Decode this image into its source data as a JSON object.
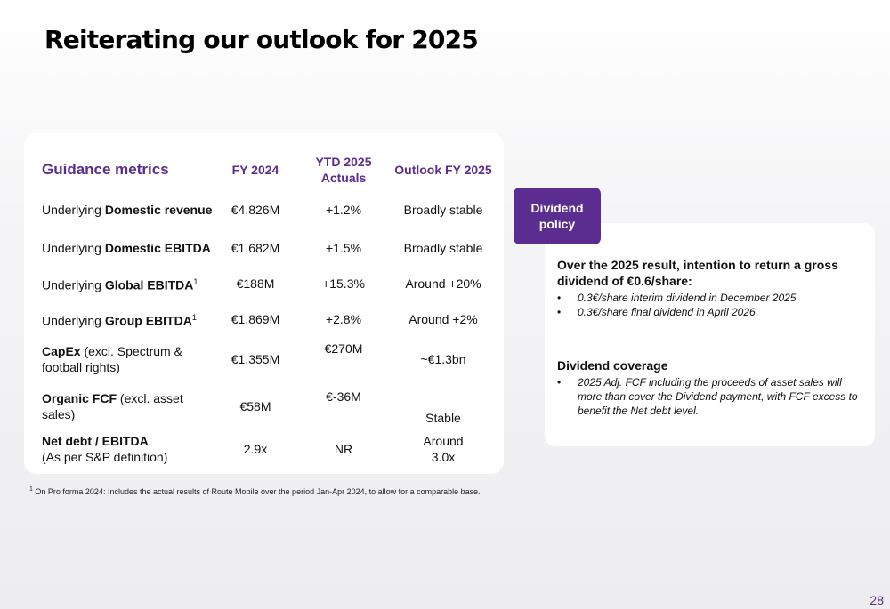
{
  "title": "Reiterating our outlook for 2025",
  "table": {
    "headers": [
      "Guidance metrics",
      "FY 2024",
      "YTD 2025 Actuals",
      "Outlook FY 2025"
    ],
    "rows": [
      {
        "prefix": "Underlying ",
        "bold": "Domestic revenue",
        "suffix": "",
        "sup": "",
        "fy2024": "€4,826M",
        "ytd2025": "+1.2%",
        "outlook": "Broadly stable"
      },
      {
        "prefix": "Underlying ",
        "bold": "Domestic EBITDA",
        "suffix": "",
        "sup": "",
        "fy2024": "€1,682M",
        "ytd2025": "+1.5%",
        "outlook": "Broadly stable"
      },
      {
        "prefix": "Underlying ",
        "bold": "Global EBITDA",
        "suffix": "",
        "sup": "1",
        "fy2024": "€188M",
        "ytd2025": "+15.3%",
        "outlook": "Around +20%"
      },
      {
        "prefix": "Underlying ",
        "bold": "Group EBITDA",
        "suffix": "",
        "sup": "1",
        "fy2024": "€1,869M",
        "ytd2025": "+2.8%",
        "outlook": "Around +2%"
      },
      {
        "prefix": "",
        "bold": "CapEx",
        "suffix": " (excl. Spectrum & football rights)",
        "sup": "",
        "fy2024": "€1,355M",
        "ytd2025": "€270M",
        "outlook": "~€1.3bn"
      },
      {
        "prefix": "",
        "bold": "Organic FCF",
        "suffix": " (excl. asset sales)",
        "sup": "",
        "fy2024": "€58M",
        "ytd2025": "€-36M",
        "outlook": "Stable"
      },
      {
        "prefix": "",
        "bold": "Net debt / EBITDA",
        "suffix": "(As per S&P definition)",
        "sup": "",
        "fy2024": "2.9x",
        "ytd2025": "NR",
        "outlook": "Around 3.0x"
      }
    ]
  },
  "footnote": {
    "marker": "1",
    "text": " On Pro forma 2024: Includes the actual results of Route Mobile over the period Jan-Apr  2024, to allow for a comparable base."
  },
  "dividend": {
    "tab_label": "Dividend policy",
    "intro": "Over the 2025 result, intention to return a gross dividend of €0.6/share:",
    "bullets": [
      "0.3€/share interim dividend in December 2025",
      "0.3€/share final dividend in April 2026"
    ],
    "coverage_title": "Dividend coverage",
    "coverage_bullets": [
      "2025 Adj. FCF including the proceeds of asset sales will more than cover the Dividend payment, with FCF excess to benefit the Net debt level."
    ],
    "bullet_char": "•"
  },
  "page_number": "28",
  "colors": {
    "accent": "#5b2d90",
    "background": "#f0f0f2",
    "card": "#ffffff"
  }
}
